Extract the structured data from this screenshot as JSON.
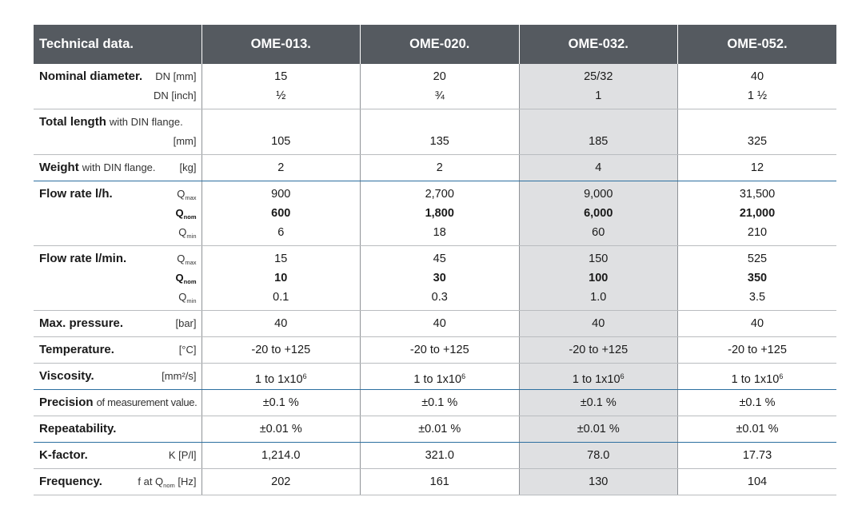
{
  "header": {
    "title": "Technical data.",
    "models": [
      "OME-013.",
      "OME-020.",
      "OME-032.",
      "OME-052."
    ]
  },
  "nominal_diameter": {
    "label": "Nominal diameter.",
    "unit_mm": "DN [mm]",
    "unit_inch": "DN [inch]",
    "mm": [
      "15",
      "20",
      "25/32",
      "40"
    ],
    "inch": [
      "½",
      "¾",
      "1",
      "1 ½"
    ]
  },
  "total_length": {
    "label": "Total length",
    "suffix": "with DIN flange.",
    "unit": "[mm]",
    "values": [
      "105",
      "135",
      "185",
      "325"
    ]
  },
  "weight": {
    "label": "Weight",
    "suffix": "with DIN flange.",
    "unit": "[kg]",
    "values": [
      "2",
      "2",
      "4",
      "12"
    ]
  },
  "flow_lh": {
    "label": "Flow rate l/h.",
    "q": "Q",
    "max_sub": "max",
    "nom_sub": "nom",
    "min_sub": "min",
    "max": [
      "900",
      "2,700",
      "9,000",
      "31,500"
    ],
    "nom": [
      "600",
      "1,800",
      "6,000",
      "21,000"
    ],
    "min": [
      "6",
      "18",
      "60",
      "210"
    ]
  },
  "flow_lmin": {
    "label": "Flow rate l/min.",
    "max": [
      "15",
      "45",
      "150",
      "525"
    ],
    "nom": [
      "10",
      "30",
      "100",
      "350"
    ],
    "min": [
      "0.1",
      "0.3",
      "1.0",
      "3.5"
    ]
  },
  "max_pressure": {
    "label": "Max. pressure.",
    "unit": "[bar]",
    "values": [
      "40",
      "40",
      "40",
      "40"
    ]
  },
  "temperature": {
    "label": "Temperature.",
    "unit": "[°C]",
    "values": [
      "-20 to +125",
      "-20 to +125",
      "-20 to +125",
      "-20 to +125"
    ]
  },
  "viscosity": {
    "label": "Viscosity.",
    "unit": "[mm²/s]",
    "base": "1 to 1x10",
    "exp": "6"
  },
  "precision": {
    "label": "Precision",
    "suffix": "of measurement value.",
    "values": [
      "±0.1 %",
      "±0.1 %",
      "±0.1 %",
      "±0.1 %"
    ]
  },
  "repeatability": {
    "label": "Repeatability.",
    "values": [
      "±0.01 %",
      "±0.01 %",
      "±0.01 %",
      "±0.01 %"
    ]
  },
  "k_factor": {
    "label": "K-factor.",
    "unit": "K [P/l]",
    "values": [
      "1,214.0",
      "321.0",
      "78.0",
      "17.73"
    ]
  },
  "frequency": {
    "label": "Frequency.",
    "unit_prefix": "f at Q",
    "unit_sub": "nom",
    "unit_suffix": "[Hz]",
    "values": [
      "202",
      "161",
      "130",
      "104"
    ]
  }
}
